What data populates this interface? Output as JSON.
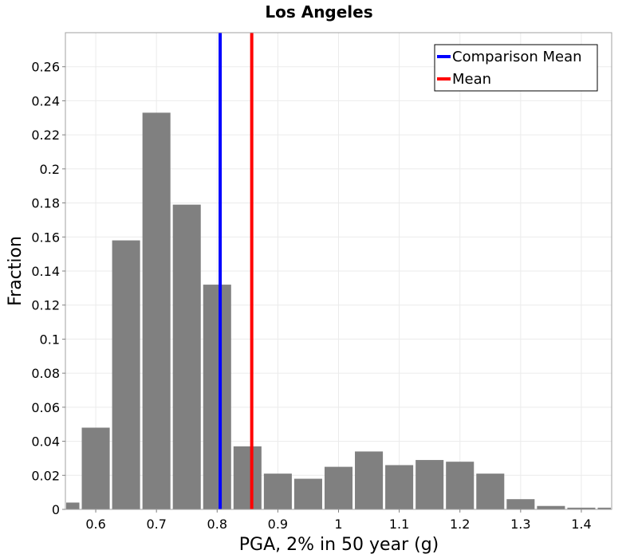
{
  "chart_data": {
    "type": "bar",
    "title": "Los Angeles",
    "xlabel": "PGA, 2% in 50 year (g)",
    "ylabel": "Fraction",
    "xlim": [
      0.55,
      1.45
    ],
    "ylim": [
      0,
      0.28
    ],
    "xticks": [
      "0.6",
      "0.7",
      "0.8",
      "0.9",
      "1",
      "1.1",
      "1.2",
      "1.3",
      "1.4"
    ],
    "xtick_values": [
      0.6,
      0.7,
      0.8,
      0.9,
      1.0,
      1.1,
      1.2,
      1.3,
      1.4
    ],
    "yticks": [
      "0",
      "0.02",
      "0.04",
      "0.06",
      "0.08",
      "0.1",
      "0.12",
      "0.14",
      "0.16",
      "0.18",
      "0.2",
      "0.22",
      "0.24",
      "0.26"
    ],
    "ytick_values": [
      0,
      0.02,
      0.04,
      0.06,
      0.08,
      0.1,
      0.12,
      0.14,
      0.16,
      0.18,
      0.2,
      0.22,
      0.24,
      0.26
    ],
    "grid": true,
    "bin_width": 0.05,
    "bin_centers": [
      0.55,
      0.6,
      0.65,
      0.7,
      0.75,
      0.8,
      0.85,
      0.9,
      0.95,
      1.0,
      1.05,
      1.1,
      1.15,
      1.2,
      1.25,
      1.3,
      1.35,
      1.4,
      1.45
    ],
    "values": [
      0.004,
      0.048,
      0.158,
      0.233,
      0.179,
      0.132,
      0.037,
      0.021,
      0.018,
      0.025,
      0.034,
      0.026,
      0.029,
      0.028,
      0.021,
      0.006,
      0.002,
      0.001,
      0.001
    ],
    "bar_color": "#808080",
    "reference_lines": [
      {
        "name": "Comparison Mean",
        "x": 0.805,
        "color": "#0000ff"
      },
      {
        "name": "Mean",
        "x": 0.857,
        "color": "#ff0000"
      }
    ],
    "legend": {
      "position": "top-right",
      "entries": [
        {
          "label": "Comparison Mean",
          "color": "#0000ff"
        },
        {
          "label": "Mean",
          "color": "#ff0000"
        }
      ]
    }
  }
}
